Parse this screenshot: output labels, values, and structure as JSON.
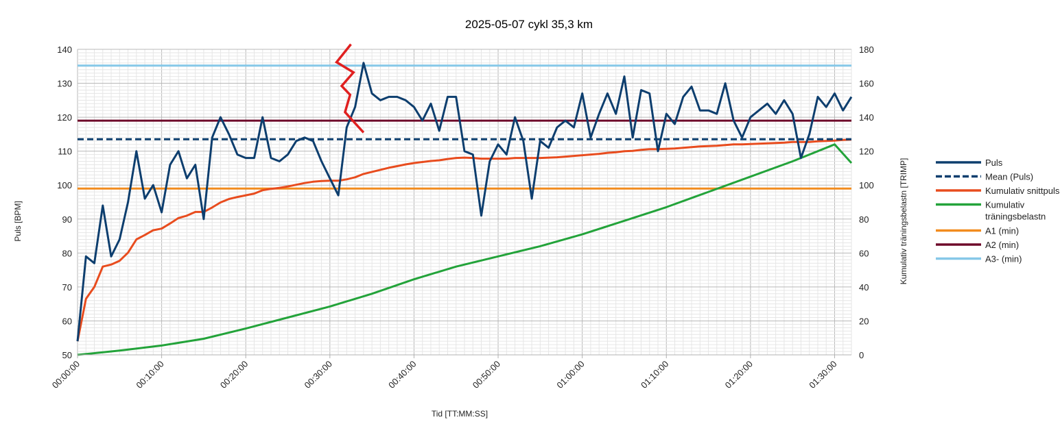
{
  "chart_data": {
    "type": "line",
    "title": "2025-05-07 cykl 35,3 km",
    "xlabel": "Tid [TT:MM:SS]",
    "ylabel": "Puls [BPM]",
    "y2label": "Kumulativ träningsbelastn [TRIMP]",
    "xlim_minutes": [
      0,
      92
    ],
    "ylim": [
      50,
      140
    ],
    "y2lim": [
      0,
      180
    ],
    "x_ticks": [
      "00:00:00",
      "00:10:00",
      "00:20:00",
      "00:30:00",
      "00:40:00",
      "00:50:00",
      "01:00:00",
      "01:10:00",
      "01:20:00",
      "01:30:00"
    ],
    "y_ticks": [
      "50",
      "60",
      "70",
      "80",
      "90",
      "100",
      "110",
      "120",
      "130",
      "140"
    ],
    "y2_ticks": [
      "0",
      "20",
      "40",
      "60",
      "80",
      "100",
      "120",
      "140",
      "160",
      "180"
    ],
    "grid": true,
    "legend_position": "right",
    "series": [
      {
        "name": "Puls",
        "axis": "left",
        "color": "#0d3e6e",
        "style": "solid",
        "x": [
          0,
          1,
          2,
          3,
          4,
          5,
          6,
          7,
          8,
          9,
          10,
          11,
          12,
          13,
          14,
          15,
          16,
          17,
          18,
          19,
          20,
          21,
          22,
          23,
          24,
          25,
          26,
          27,
          28,
          29,
          30,
          31,
          32,
          33,
          34,
          35,
          36,
          37,
          38,
          39,
          40,
          41,
          42,
          43,
          44,
          45,
          46,
          47,
          48,
          49,
          50,
          51,
          52,
          53,
          54,
          55,
          56,
          57,
          58,
          59,
          60,
          61,
          62,
          63,
          64,
          65,
          66,
          67,
          68,
          69,
          70,
          71,
          72,
          73,
          74,
          75,
          76,
          77,
          78,
          79,
          80,
          81,
          82,
          83,
          84,
          85,
          86,
          87,
          88,
          89,
          90,
          91,
          92
        ],
        "values": [
          54,
          79,
          77,
          94,
          79,
          84,
          95,
          110,
          96,
          100,
          92,
          106,
          110,
          102,
          106,
          90,
          114,
          120,
          115,
          109,
          108,
          108,
          120,
          108,
          107,
          109,
          113,
          114,
          113,
          107,
          102,
          97,
          117,
          123,
          136,
          127,
          125,
          126,
          126,
          125,
          123,
          119,
          124,
          116,
          126,
          126,
          110,
          109,
          91,
          107,
          112,
          109,
          120,
          113,
          96,
          113,
          111,
          117,
          119,
          117,
          127,
          114,
          121,
          127,
          121,
          132,
          114,
          128,
          127,
          110,
          121,
          118,
          126,
          129,
          122,
          122,
          121,
          130,
          119,
          114,
          120,
          122,
          124,
          121,
          125,
          121,
          108,
          115,
          126,
          123,
          127,
          122,
          126
        ]
      },
      {
        "name": "Mean (Puls)",
        "axis": "left",
        "color": "#0d3e6e",
        "style": "dashed",
        "x": [
          0,
          92
        ],
        "values": [
          113.5,
          113.5
        ]
      },
      {
        "name": "Kumulativ snittpuls",
        "axis": "left",
        "color": "#e84c1e",
        "style": "solid",
        "x": [
          0,
          1,
          2,
          3,
          4,
          5,
          6,
          7,
          8,
          9,
          10,
          11,
          12,
          13,
          14,
          15,
          16,
          17,
          18,
          19,
          20,
          21,
          22,
          23,
          24,
          25,
          26,
          27,
          28,
          29,
          30,
          31,
          32,
          33,
          34,
          35,
          36,
          37,
          38,
          39,
          40,
          41,
          42,
          43,
          44,
          45,
          46,
          47,
          48,
          49,
          50,
          51,
          52,
          53,
          54,
          55,
          56,
          57,
          58,
          59,
          60,
          61,
          62,
          63,
          64,
          65,
          66,
          67,
          68,
          69,
          70,
          71,
          72,
          73,
          74,
          75,
          76,
          77,
          78,
          79,
          80,
          81,
          82,
          83,
          84,
          85,
          86,
          87,
          88,
          89,
          90,
          91,
          92
        ],
        "values": [
          54,
          66.5,
          70,
          76,
          76.6,
          77.7,
          80.1,
          84,
          85.3,
          86.7,
          87.2,
          88.7,
          90.3,
          91,
          92.1,
          92.1,
          93.4,
          94.9,
          95.9,
          96.5,
          97,
          97.5,
          98.5,
          98.9,
          99.2,
          99.6,
          100.1,
          100.6,
          101,
          101.2,
          101.3,
          101.3,
          101.7,
          102.3,
          103.3,
          103.9,
          104.5,
          105.1,
          105.6,
          106.1,
          106.5,
          106.8,
          107.1,
          107.3,
          107.7,
          108,
          108.1,
          108,
          107.8,
          107.8,
          107.8,
          107.8,
          108,
          108,
          108,
          108,
          108.1,
          108.2,
          108.4,
          108.6,
          108.8,
          109,
          109.2,
          109.5,
          109.7,
          110,
          110.1,
          110.4,
          110.6,
          110.6,
          110.7,
          110.8,
          111,
          111.2,
          111.4,
          111.5,
          111.6,
          111.8,
          112,
          112,
          112.1,
          112.2,
          112.3,
          112.4,
          112.5,
          112.7,
          112.7,
          112.7,
          112.9,
          113,
          113.1,
          113.3,
          113.4
        ]
      },
      {
        "name": "Kumulativ träningsbelastn",
        "axis": "right",
        "color": "#23a33a",
        "style": "solid",
        "x": [
          0,
          5,
          10,
          15,
          20,
          25,
          30,
          35,
          40,
          45,
          50,
          55,
          60,
          65,
          70,
          75,
          80,
          85,
          90,
          92
        ],
        "values": [
          0,
          2.5,
          5.5,
          9.5,
          15.5,
          22,
          28.5,
          36,
          44.5,
          52,
          58,
          64,
          71,
          79,
          87,
          96,
          105,
          114,
          124,
          113
        ]
      },
      {
        "name": "A1 (min)",
        "axis": "left",
        "color": "#f28c1e",
        "style": "solid",
        "x": [
          0,
          92
        ],
        "values": [
          99,
          99
        ]
      },
      {
        "name": "A2 (min)",
        "axis": "left",
        "color": "#6e0a2a",
        "style": "solid",
        "x": [
          0,
          92
        ],
        "values": [
          119,
          119
        ]
      },
      {
        "name": "A3- (min)",
        "axis": "left",
        "color": "#86c8e8",
        "style": "solid",
        "x": [
          0,
          92
        ],
        "values": [
          135.2,
          135.2
        ]
      }
    ],
    "annotations": [
      {
        "type": "lightning-bolt",
        "color": "#e02020",
        "x_minutes": [
          32.5,
          30.8,
          32.8,
          31.4,
          32.4,
          31.8,
          34
        ],
        "y": [
          141.5,
          136.2,
          133.2,
          129.2,
          126.6,
          121.5,
          115.5
        ]
      }
    ]
  }
}
